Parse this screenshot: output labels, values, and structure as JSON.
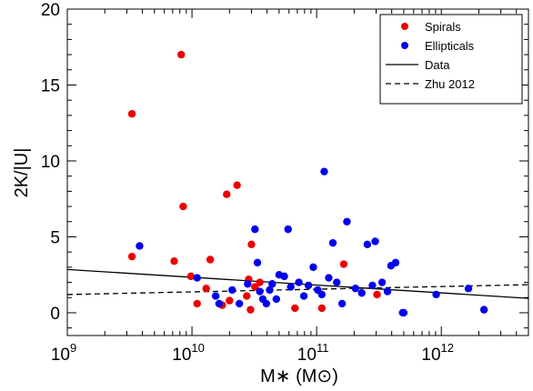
{
  "chart_data": {
    "type": "scatter",
    "xlabel": "M∗ (M⊙)",
    "ylabel": "2K/|U|",
    "xscale": "log",
    "xlim": [
      1000000000.0,
      5000000000000.0
    ],
    "ylim": [
      -1.5,
      20
    ],
    "grid": false,
    "legend_position": "top-right",
    "x_ticks": [
      {
        "base": "10",
        "exp": "9",
        "value": 1000000000.0
      },
      {
        "base": "10",
        "exp": "10",
        "value": 10000000000.0
      },
      {
        "base": "10",
        "exp": "11",
        "value": 100000000000.0
      },
      {
        "base": "10",
        "exp": "12",
        "value": 1000000000000.0
      }
    ],
    "y_ticks": [
      {
        "label": "0",
        "value": 0
      },
      {
        "label": "5",
        "value": 5
      },
      {
        "label": "10",
        "value": 10
      },
      {
        "label": "15",
        "value": 15
      },
      {
        "label": "20",
        "value": 20
      }
    ],
    "legend": [
      {
        "label": "Spirals",
        "kind": "marker",
        "color": "#ee0000"
      },
      {
        "label": "Ellipticals",
        "kind": "marker",
        "color": "#0000ee"
      },
      {
        "label": "Data",
        "kind": "solid-line"
      },
      {
        "label": "Zhu 2012",
        "kind": "dashed-line"
      }
    ],
    "series": [
      {
        "name": "Spirals",
        "color": "#ee0000",
        "points": [
          [
            3300000000.0,
            13.1
          ],
          [
            3300000000.0,
            3.7
          ],
          [
            7200000000.0,
            3.4
          ],
          [
            8200000000.0,
            17.0
          ],
          [
            8500000000.0,
            7.0
          ],
          [
            9800000000.0,
            2.4
          ],
          [
            11000000000.0,
            0.6
          ],
          [
            13000000000.0,
            1.6
          ],
          [
            14000000000.0,
            3.5
          ],
          [
            17500000000.0,
            0.5
          ],
          [
            19000000000.0,
            7.8
          ],
          [
            20000000000.0,
            0.8
          ],
          [
            23000000000.0,
            8.4
          ],
          [
            27500000000.0,
            1.1
          ],
          [
            28500000000.0,
            2.2
          ],
          [
            29500000000.0,
            0.2
          ],
          [
            30000000000.0,
            4.5
          ],
          [
            32000000000.0,
            1.7
          ],
          [
            35000000000.0,
            2.0
          ],
          [
            67000000000.0,
            0.3
          ],
          [
            110000000000.0,
            0.3
          ],
          [
            165000000000.0,
            3.2
          ],
          [
            305000000000.0,
            1.2
          ]
        ]
      },
      {
        "name": "Ellipticals",
        "color": "#0000ee",
        "points": [
          [
            3800000000.0,
            4.4
          ],
          [
            11000000000.0,
            2.3
          ],
          [
            15500000000.0,
            1.1
          ],
          [
            16500000000.0,
            0.6
          ],
          [
            21000000000.0,
            1.5
          ],
          [
            24000000000.0,
            0.6
          ],
          [
            28000000000.0,
            1.9
          ],
          [
            32000000000.0,
            5.5
          ],
          [
            33500000000.0,
            3.3
          ],
          [
            35000000000.0,
            1.4
          ],
          [
            37000000000.0,
            0.9
          ],
          [
            39500000000.0,
            0.6
          ],
          [
            42000000000.0,
            1.5
          ],
          [
            44000000000.0,
            1.9
          ],
          [
            47500000000.0,
            0.9
          ],
          [
            50000000000.0,
            2.5
          ],
          [
            55000000000.0,
            2.4
          ],
          [
            59000000000.0,
            5.5
          ],
          [
            62000000000.0,
            1.7
          ],
          [
            72000000000.0,
            2.0
          ],
          [
            79000000000.0,
            1.1
          ],
          [
            86000000000.0,
            1.8
          ],
          [
            94000000000.0,
            3.0
          ],
          [
            102000000000.0,
            1.5
          ],
          [
            110000000000.0,
            1.2
          ],
          [
            115000000000.0,
            9.3
          ],
          [
            125000000000.0,
            2.3
          ],
          [
            135000000000.0,
            4.6
          ],
          [
            145000000000.0,
            2.0
          ],
          [
            160000000000.0,
            0.6
          ],
          [
            175000000000.0,
            6.0
          ],
          [
            205000000000.0,
            1.6
          ],
          [
            230000000000.0,
            1.3
          ],
          [
            255000000000.0,
            4.5
          ],
          [
            280000000000.0,
            1.8
          ],
          [
            295000000000.0,
            4.7
          ],
          [
            335000000000.0,
            2.0
          ],
          [
            370000000000.0,
            1.4
          ],
          [
            395000000000.0,
            3.1
          ],
          [
            430000000000.0,
            3.3
          ],
          [
            490000000000.0,
            0.0
          ],
          [
            500000000000.0,
            0.0
          ],
          [
            910000000000.0,
            1.2
          ],
          [
            1650000000000.0,
            1.6
          ],
          [
            2200000000000.0,
            0.2
          ]
        ]
      },
      {
        "name": "Data",
        "kind": "solid-line",
        "points": [
          [
            1000000000.0,
            2.85
          ],
          [
            5000000000000.0,
            0.95
          ]
        ]
      },
      {
        "name": "Zhu 2012",
        "kind": "dashed-line",
        "points": [
          [
            1000000000.0,
            1.2
          ],
          [
            5000000000000.0,
            1.85
          ]
        ]
      }
    ]
  }
}
